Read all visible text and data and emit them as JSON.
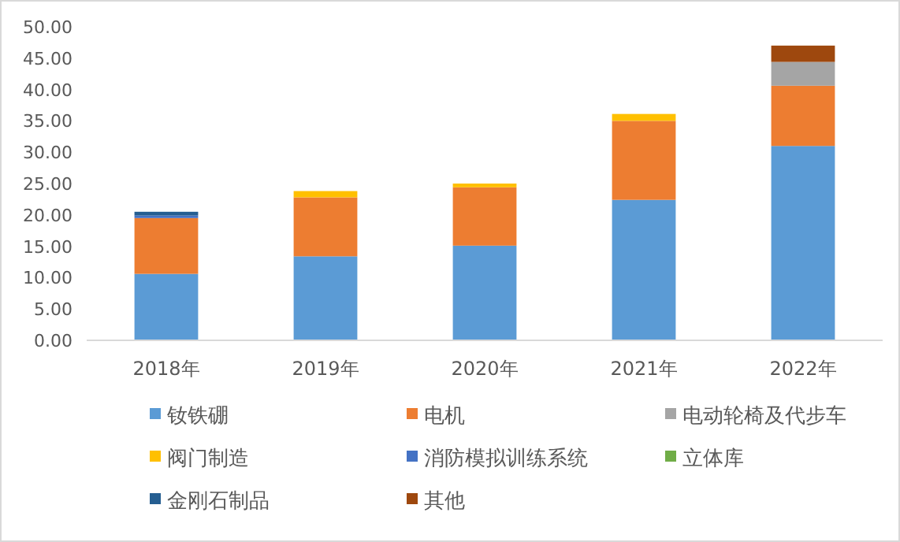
{
  "chart_data": {
    "type": "bar",
    "stacked": true,
    "categories": [
      "2018年",
      "2019年",
      "2020年",
      "2021年",
      "2022年"
    ],
    "series": [
      {
        "name": "钕铁硼",
        "color": "#5b9bd5",
        "values": [
          10.6,
          13.4,
          15.1,
          22.4,
          31.0
        ]
      },
      {
        "name": "电机",
        "color": "#ed7d31",
        "values": [
          8.9,
          9.4,
          9.3,
          12.6,
          9.6
        ]
      },
      {
        "name": "电动轮椅及代步车",
        "color": "#a5a5a5",
        "values": [
          0,
          0,
          0,
          0,
          3.8
        ]
      },
      {
        "name": "阀门制造",
        "color": "#ffc000",
        "values": [
          0,
          1.0,
          0.6,
          1.1,
          0
        ]
      },
      {
        "name": "消防模拟训练系统",
        "color": "#4472c4",
        "values": [
          0.4,
          0,
          0,
          0,
          0
        ]
      },
      {
        "name": "立体库",
        "color": "#70ad47",
        "values": [
          0,
          0,
          0,
          0,
          0
        ]
      },
      {
        "name": "金刚石制品",
        "color": "#255e91",
        "values": [
          0.6,
          0,
          0,
          0,
          0
        ]
      },
      {
        "name": "其他",
        "color": "#9e480e",
        "values": [
          0,
          0,
          0,
          0,
          2.6
        ]
      }
    ],
    "ylim": [
      0,
      50
    ],
    "yticks": [
      {
        "value": 0,
        "label": "0.00"
      },
      {
        "value": 5,
        "label": "5.00"
      },
      {
        "value": 10,
        "label": "10.00"
      },
      {
        "value": 15,
        "label": "15.00"
      },
      {
        "value": 20,
        "label": "20.00"
      },
      {
        "value": 25,
        "label": "25.00"
      },
      {
        "value": 30,
        "label": "30.00"
      },
      {
        "value": 35,
        "label": "35.00"
      },
      {
        "value": 40,
        "label": "40.00"
      },
      {
        "value": 45,
        "label": "45.00"
      },
      {
        "value": 50,
        "label": "50.00"
      }
    ],
    "legend": "bottom"
  }
}
